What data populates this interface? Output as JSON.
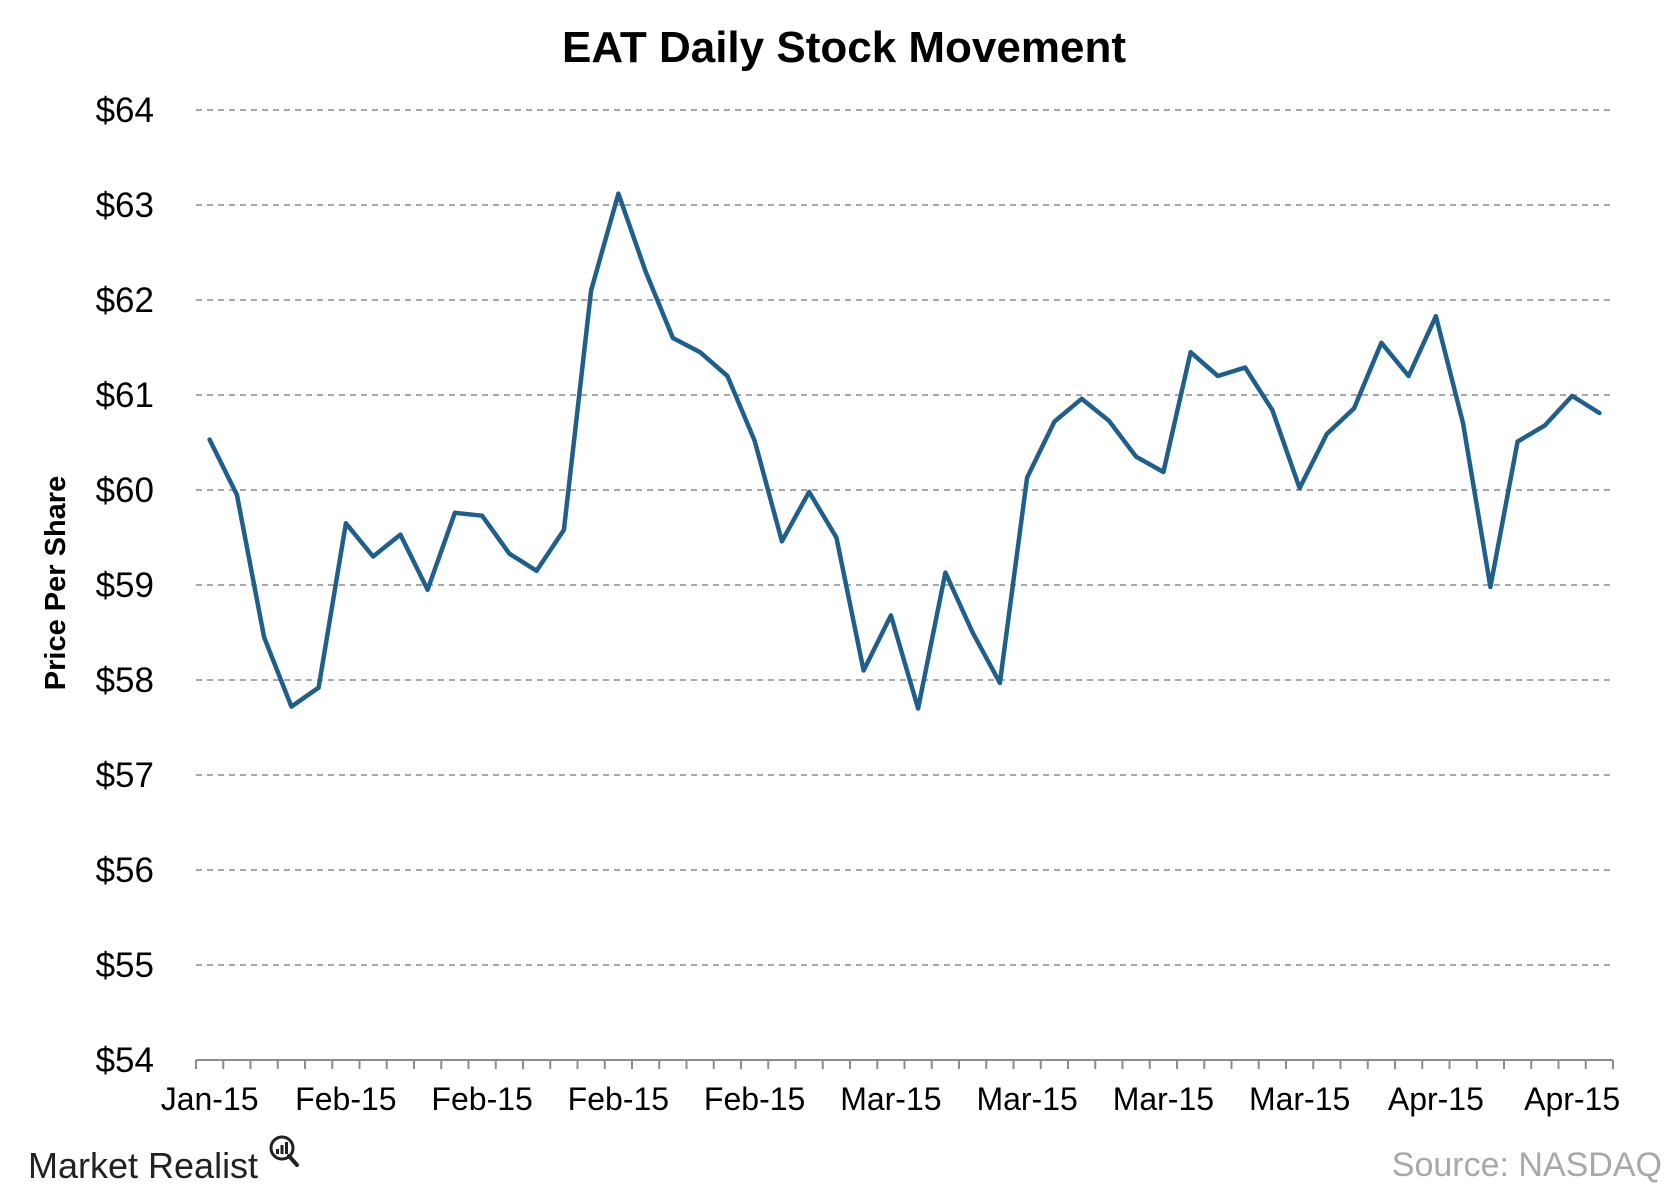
{
  "chart_data": {
    "type": "line",
    "title": "EAT Daily Stock Movement",
    "xlabel": "",
    "ylabel": "Price Per Share",
    "ylim": [
      54,
      64
    ],
    "y_ticks": [
      "$54",
      "$55",
      "$56",
      "$57",
      "$58",
      "$59",
      "$60",
      "$61",
      "$62",
      "$63",
      "$64"
    ],
    "x_tick_labels": [
      "Jan-15",
      "Feb-15",
      "Feb-15",
      "Feb-15",
      "Feb-15",
      "Mar-15",
      "Mar-15",
      "Mar-15",
      "Mar-15",
      "Apr-15",
      "Apr-15"
    ],
    "grid": true,
    "series": [
      {
        "color": "#1f5f8b",
        "values": [
          60.53,
          59.95,
          58.45,
          57.72,
          57.92,
          59.65,
          59.3,
          59.53,
          58.95,
          59.76,
          59.73,
          59.33,
          59.15,
          59.58,
          62.1,
          63.12,
          62.3,
          61.6,
          61.45,
          61.2,
          60.52,
          59.46,
          59.98,
          59.5,
          58.1,
          58.68,
          57.7,
          59.13,
          58.5,
          57.97,
          60.13,
          60.72,
          60.96,
          60.73,
          60.35,
          60.19,
          61.45,
          61.2,
          61.29,
          60.84,
          60.02,
          60.59,
          60.86,
          61.55,
          61.2,
          61.83,
          60.7,
          58.98,
          60.51,
          60.68,
          60.99,
          60.81
        ]
      }
    ]
  },
  "footer": {
    "brand": "Market Realist",
    "source": "Source: NASDAQ"
  }
}
